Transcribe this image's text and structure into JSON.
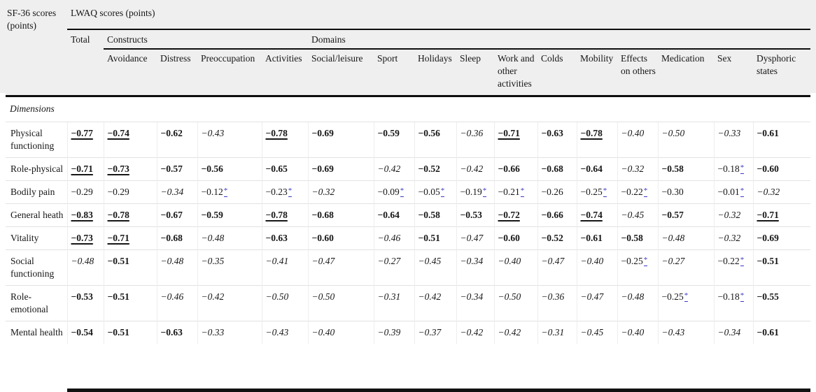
{
  "page": {
    "header_bg": "#efefef",
    "link_color": "#3b3bc4"
  },
  "table": {
    "corner_label": "SF-36 scores (points)",
    "top_header": "LWAQ scores (points)",
    "group_headers": {
      "total": "Total",
      "constructs": "Constructs",
      "domains": "Domains"
    },
    "columns": [
      "Avoidance",
      "Distress",
      "Preoccupation",
      "Activities",
      "Social/leisure",
      "Sport",
      "Holidays",
      "Sleep",
      "Work and other activities",
      "Colds",
      "Mobility",
      "Effects on others",
      "Medication",
      "Sex",
      "Dysphoric states"
    ],
    "section_label": "Dimensions",
    "footnote_marker": "*",
    "format_legend": {
      "bu": "bold-underlined",
      "b": "bold",
      "i": "italic",
      "p": "plain",
      "p*": "plain with blue superscript asterisk footnote link"
    },
    "rows": [
      {
        "label": "Physical functioning",
        "cells": [
          [
            "−0.77",
            "bu"
          ],
          [
            "−0.74",
            "bu"
          ],
          [
            "−0.62",
            "b"
          ],
          [
            "−0.43",
            "i"
          ],
          [
            "−0.78",
            "bu"
          ],
          [
            "−0.69",
            "b"
          ],
          [
            "−0.59",
            "b"
          ],
          [
            "−0.56",
            "b"
          ],
          [
            "−0.36",
            "i"
          ],
          [
            "−0.71",
            "bu"
          ],
          [
            "−0.63",
            "b"
          ],
          [
            "−0.78",
            "bu"
          ],
          [
            "−0.40",
            "i"
          ],
          [
            "−0.50",
            "i"
          ],
          [
            "−0.33",
            "i"
          ],
          [
            "−0.61",
            "b"
          ]
        ]
      },
      {
        "label": "Role-physical",
        "cells": [
          [
            "−0.71",
            "bu"
          ],
          [
            "−0.73",
            "bu"
          ],
          [
            "−0.57",
            "b"
          ],
          [
            "−0.56",
            "b"
          ],
          [
            "−0.65",
            "b"
          ],
          [
            "−0.69",
            "b"
          ],
          [
            "−0.42",
            "i"
          ],
          [
            "−0.52",
            "b"
          ],
          [
            "−0.42",
            "i"
          ],
          [
            "−0.66",
            "b"
          ],
          [
            "−0.68",
            "b"
          ],
          [
            "−0.64",
            "b"
          ],
          [
            "−0.32",
            "i"
          ],
          [
            "−0.58",
            "b"
          ],
          [
            "−0.18",
            "p*"
          ],
          [
            "−0.60",
            "b"
          ]
        ]
      },
      {
        "label": "Bodily pain",
        "cells": [
          [
            "−0.29",
            "p"
          ],
          [
            "−0.29",
            "p"
          ],
          [
            "−0.34",
            "i"
          ],
          [
            "−0.12",
            "p*"
          ],
          [
            "−0.23",
            "p*"
          ],
          [
            "−0.32",
            "i"
          ],
          [
            "−0.09",
            "p*"
          ],
          [
            "−0.05",
            "p*"
          ],
          [
            "−0.19",
            "p*"
          ],
          [
            "−0.21",
            "p*"
          ],
          [
            "−0.26",
            "p"
          ],
          [
            "−0.25",
            "p*"
          ],
          [
            "−0.22",
            "p*"
          ],
          [
            "−0.30",
            "p"
          ],
          [
            "−0.01",
            "p*"
          ],
          [
            "−0.32",
            "i"
          ]
        ]
      },
      {
        "label": "General heath",
        "cells": [
          [
            "−0.83",
            "bu"
          ],
          [
            "−0.78",
            "bu"
          ],
          [
            "−0.67",
            "b"
          ],
          [
            "−0.59",
            "b"
          ],
          [
            "−0.78",
            "bu"
          ],
          [
            "−0.68",
            "b"
          ],
          [
            "−0.64",
            "b"
          ],
          [
            "−0.58",
            "b"
          ],
          [
            "−0.53",
            "b"
          ],
          [
            "−0.72",
            "bu"
          ],
          [
            "−0.66",
            "b"
          ],
          [
            "−0.74",
            "bu"
          ],
          [
            "−0.45",
            "i"
          ],
          [
            "−0.57",
            "b"
          ],
          [
            "−0.32",
            "i"
          ],
          [
            "−0.71",
            "bu"
          ]
        ]
      },
      {
        "label": "Vitality",
        "cells": [
          [
            "−0.73",
            "bu"
          ],
          [
            "−0.71",
            "bu"
          ],
          [
            "−0.68",
            "b"
          ],
          [
            "−0.48",
            "i"
          ],
          [
            "−0.63",
            "b"
          ],
          [
            "−0.60",
            "b"
          ],
          [
            "−0.46",
            "i"
          ],
          [
            "−0.51",
            "b"
          ],
          [
            "−0.47",
            "i"
          ],
          [
            "−0.60",
            "b"
          ],
          [
            "−0.52",
            "b"
          ],
          [
            "−0.61",
            "b"
          ],
          [
            "−0.58",
            "b"
          ],
          [
            "−0.48",
            "i"
          ],
          [
            "−0.32",
            "i"
          ],
          [
            "−0.69",
            "b"
          ]
        ]
      },
      {
        "label": "Social functioning",
        "cells": [
          [
            "−0.48",
            "i"
          ],
          [
            "−0.51",
            "b"
          ],
          [
            "−0.48",
            "i"
          ],
          [
            "−0.35",
            "i"
          ],
          [
            "−0.41",
            "i"
          ],
          [
            "−0.47",
            "i"
          ],
          [
            "−0.27",
            "i"
          ],
          [
            "−0.45",
            "i"
          ],
          [
            "−0.34",
            "i"
          ],
          [
            "−0.40",
            "i"
          ],
          [
            "−0.47",
            "i"
          ],
          [
            "−0.40",
            "i"
          ],
          [
            "−0.25",
            "p*"
          ],
          [
            "−0.27",
            "i"
          ],
          [
            "−0.22",
            "p*"
          ],
          [
            "−0.51",
            "b"
          ]
        ]
      },
      {
        "label": "Role-emotional",
        "cells": [
          [
            "−0.53",
            "b"
          ],
          [
            "−0.51",
            "b"
          ],
          [
            "−0.46",
            "i"
          ],
          [
            "−0.42",
            "i"
          ],
          [
            "−0.50",
            "i"
          ],
          [
            "−0.50",
            "i"
          ],
          [
            "−0.31",
            "i"
          ],
          [
            "−0.42",
            "i"
          ],
          [
            "−0.34",
            "i"
          ],
          [
            "−0.50",
            "i"
          ],
          [
            "−0.36",
            "i"
          ],
          [
            "−0.47",
            "i"
          ],
          [
            "−0.48",
            "i"
          ],
          [
            "−0.25",
            "p*"
          ],
          [
            "−0.18",
            "p*"
          ],
          [
            "−0.55",
            "b"
          ]
        ]
      },
      {
        "label": "Mental health",
        "cells": [
          [
            "−0.54",
            "b"
          ],
          [
            "−0.51",
            "b"
          ],
          [
            "−0.63",
            "b"
          ],
          [
            "−0.33",
            "i"
          ],
          [
            "−0.43",
            "i"
          ],
          [
            "−0.40",
            "i"
          ],
          [
            "−0.39",
            "i"
          ],
          [
            "−0.37",
            "i"
          ],
          [
            "−0.42",
            "i"
          ],
          [
            "−0.42",
            "i"
          ],
          [
            "−0.31",
            "i"
          ],
          [
            "−0.45",
            "i"
          ],
          [
            "−0.40",
            "i"
          ],
          [
            "−0.43",
            "i"
          ],
          [
            "−0.34",
            "i"
          ],
          [
            "−0.61",
            "b"
          ]
        ]
      }
    ]
  }
}
